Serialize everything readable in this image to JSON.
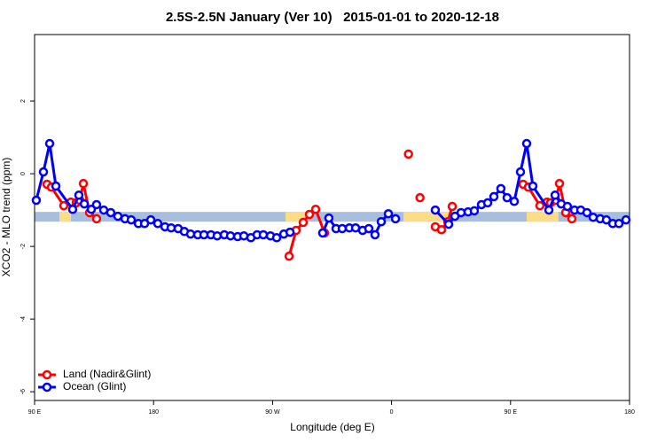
{
  "chart_data": {
    "type": "line",
    "title": "2.5S-2.5N January (Ver 10)   2015-01-01 to 2020-12-18",
    "x_label": "Longitude (deg E)",
    "y_label": "XCO2 - MLO trend (ppm)",
    "xlim": [
      90,
      540
    ],
    "ylim": [
      -6.24,
      3.83
    ],
    "xticks": [
      {
        "value": 90,
        "label": "90 E"
      },
      180,
      {
        "value": 270,
        "label": "90 W"
      },
      {
        "value": 360,
        "label": "0"
      },
      {
        "value": 450,
        "label": "90 E"
      },
      {
        "value": 540,
        "label": "180"
      }
    ],
    "yticks": [
      -6,
      -4,
      -2,
      0,
      2
    ],
    "legend": "bottom-left",
    "band": {
      "ylim": [
        -1.32,
        -1.05
      ],
      "color": "#a8bedf",
      "land_color": "#fcdc84",
      "land": [
        [
          108.8,
          117.5
        ],
        [
          279.8,
          297.2
        ],
        [
          369.0,
          404.5
        ],
        [
          462.2,
          486.3
        ]
      ]
    },
    "series": [
      {
        "name": "Land (Nadir&Glint)",
        "color": "#ff0000",
        "x": [
          99.4,
          102.7,
          112.1,
          117.5,
          121.5,
          124.2,
          126.9,
          131.6,
          136.9,
          null,
          282.5,
          287.8,
          293.2,
          297.9,
          302.6,
          309.3,
          null,
          372.8,
          null,
          381.5,
          null,
          393.1,
          397.8,
          402.5,
          405.9,
          null,
          459.5,
          463.5,
          472.2,
          477.6,
          480.3,
          484.3,
          487.0,
          491.7,
          496.4
        ],
        "values": [
          -0.29,
          -0.37,
          -0.88,
          -0.78,
          -0.8,
          -0.73,
          -0.27,
          -1.07,
          -1.24,
          null,
          -2.27,
          -1.56,
          -1.34,
          -1.12,
          -0.98,
          -1.63,
          null,
          0.54,
          null,
          -0.66,
          null,
          -1.46,
          -1.54,
          -1.32,
          -0.9,
          null,
          -0.29,
          -0.37,
          -0.88,
          -0.78,
          -0.8,
          -0.73,
          -0.27,
          -1.07,
          -1.24
        ]
      },
      {
        "name": "Ocean (Glint)",
        "color": "#0000ff",
        "x": [
          91.3,
          96.7,
          101.4,
          106.1,
          118.8,
          123.5,
          127.6,
          132.9,
          136.9,
          142.3,
          147.6,
          153.0,
          158.4,
          163.1,
          168.5,
          173.2,
          177.9,
          183.2,
          188.6,
          193.3,
          198.6,
          203.3,
          208.0,
          213.4,
          218.1,
          223.4,
          228.1,
          233.5,
          238.2,
          243.6,
          248.3,
          253.6,
          258.3,
          263.0,
          268.4,
          273.1,
          278.5,
          283.2,
          null,
          307.9,
          312.6,
          318.0,
          322.7,
          328.1,
          332.8,
          338.1,
          342.8,
          347.5,
          352.2,
          357.6,
          363.0,
          null,
          393.1,
          403.2,
          407.9,
          412.6,
          417.9,
          422.6,
          428.0,
          432.7,
          437.4,
          442.7,
          447.4,
          452.8,
          457.5,
          462.2,
          466.9,
          479.0,
          483.7,
          488.3,
          493.0,
          498.4,
          503.1,
          507.8,
          512.5,
          517.8,
          522.5,
          527.3,
          532.0,
          537.3
        ],
        "values": [
          -0.73,
          0.05,
          0.83,
          -0.34,
          -0.98,
          -0.59,
          -0.83,
          -0.98,
          -0.85,
          -1.0,
          -1.07,
          -1.17,
          -1.24,
          -1.27,
          -1.37,
          -1.37,
          -1.27,
          -1.37,
          -1.46,
          -1.49,
          -1.51,
          -1.59,
          -1.66,
          -1.68,
          -1.68,
          -1.68,
          -1.71,
          -1.68,
          -1.71,
          -1.73,
          -1.71,
          -1.76,
          -1.68,
          -1.68,
          -1.71,
          -1.76,
          -1.66,
          -1.61,
          null,
          -1.63,
          -1.22,
          -1.51,
          -1.51,
          -1.49,
          -1.49,
          -1.56,
          -1.51,
          -1.68,
          -1.32,
          -1.1,
          -1.24,
          null,
          -1.0,
          -1.39,
          -1.17,
          -1.07,
          -1.05,
          -1.02,
          -0.85,
          -0.8,
          -0.63,
          -0.41,
          -0.66,
          -0.76,
          0.05,
          0.83,
          -0.34,
          -1.0,
          -0.59,
          -0.83,
          -0.9,
          -1.0,
          -1.0,
          -1.07,
          -1.2,
          -1.24,
          -1.27,
          -1.37,
          -1.37,
          -1.27
        ]
      }
    ]
  }
}
